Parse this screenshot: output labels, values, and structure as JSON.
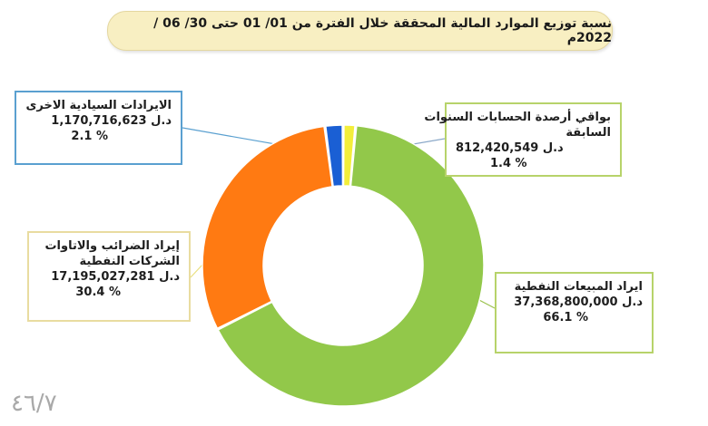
{
  "title": "نسبة توزيع الموارد المالية المحققة خلال الفترة من 01/ 01 حتى 30/ 06 / 2022م",
  "page_number": "٤٦/٧",
  "chart_data": {
    "type": "pie",
    "donut": true,
    "categories": [
      "ايراد المبيعات النفطية",
      "إيراد الضرائب والاتاوات الشركات النفطية",
      "الايرادات السيادية الاخرى",
      "بواقي أرصدة الحسابات السنوات السابقة"
    ],
    "values": [
      37368800000,
      17195027281,
      1170716623,
      812420549
    ],
    "percentages": [
      66.1,
      30.4,
      2.1,
      1.4
    ],
    "colors": [
      "#92c84a",
      "#ff7a12",
      "#1a5fd4",
      "#f3ee3a"
    ],
    "title": "نسبة توزيع الموارد المالية المحققة خلال الفترة من 01/ 01 حتى 30/ 06 / 2022م"
  },
  "callouts": {
    "sovereign": {
      "line1": "الايرادات السيادية الاخرى",
      "amount": "1,170,716,623",
      "unit": "د.ل",
      "pct": "2.1 %"
    },
    "balances": {
      "line1": "بواقي أرصدة الحسابات السنوات",
      "line2": "السابقة",
      "amount": "812,420,549",
      "unit": "د.ل",
      "pct": "1.4  %"
    },
    "taxes": {
      "line1": "إيراد الضرائب والاتاوات",
      "line2": "الشركات النفطية",
      "amount": "17,195,027,281",
      "unit": "د.ل",
      "pct": "30.4 %"
    },
    "sales": {
      "line1": "ايراد المبيعات النفطية",
      "amount": "37,368,800,000",
      "unit": "د.ل",
      "pct": "66.1 %"
    }
  }
}
